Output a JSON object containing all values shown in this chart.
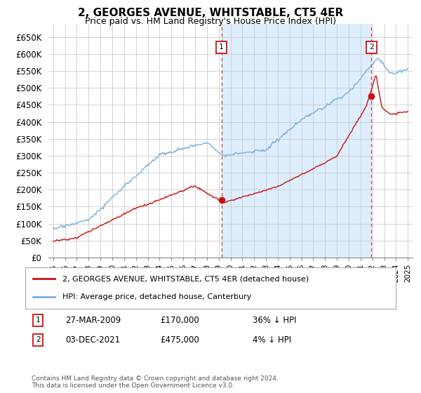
{
  "title": "2, GEORGES AVENUE, WHITSTABLE, CT5 4ER",
  "subtitle": "Price paid vs. HM Land Registry's House Price Index (HPI)",
  "yticks": [
    0,
    50000,
    100000,
    150000,
    200000,
    250000,
    300000,
    350000,
    400000,
    450000,
    500000,
    550000,
    600000,
    650000
  ],
  "ytick_labels": [
    "£0",
    "£50K",
    "£100K",
    "£150K",
    "£200K",
    "£250K",
    "£300K",
    "£350K",
    "£400K",
    "£450K",
    "£500K",
    "£550K",
    "£600K",
    "£650K"
  ],
  "hpi_color": "#7ab0d8",
  "price_color": "#cc1111",
  "marker1_label": "1",
  "marker1_price": 170000,
  "marker1_year": 2009.23,
  "marker1_date_str": "27-MAR-2009",
  "marker1_pct": "36% ↓ HPI",
  "marker2_label": "2",
  "marker2_price": 475000,
  "marker2_year": 2021.92,
  "marker2_date_str": "03-DEC-2021",
  "marker2_pct": "4% ↓ HPI",
  "legend_label1": "2, GEORGES AVENUE, WHITSTABLE, CT5 4ER (detached house)",
  "legend_label2": "HPI: Average price, detached house, Canterbury",
  "footer": "Contains HM Land Registry data © Crown copyright and database right 2024.\nThis data is licensed under the Open Government Licence v3.0.",
  "bg_color": "#ffffff",
  "grid_color": "#cccccc",
  "shade_color": "#ddeeff"
}
